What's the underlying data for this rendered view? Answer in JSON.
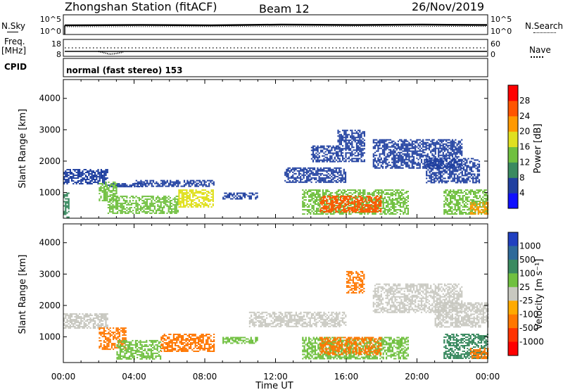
{
  "header": {
    "station": "Zhongshan Station (fitACF)",
    "beam": "Beam 12",
    "date": "26/Nov/2019"
  },
  "left_labels": {
    "nsky": "N.Sky",
    "freq_line1": "Freq.",
    "freq_line2": "[MHz]",
    "cpid": "CPID"
  },
  "right_labels": {
    "nsearch": "N.Search",
    "nave": "Nave"
  },
  "noise_panel": {
    "top_tick": "10^5",
    "bottom_tick": "10^0"
  },
  "freq_panel": {
    "left_ticks": [
      "18",
      "8"
    ],
    "right_ticks": [
      "60",
      "0"
    ]
  },
  "program": {
    "label": "normal (fast stereo) 153"
  },
  "time_axis": {
    "ticks": [
      "00:00",
      "04:00",
      "08:00",
      "12:00",
      "16:00",
      "20:00",
      "00:00"
    ],
    "label": "Time UT"
  },
  "range_axis": {
    "label": "Slant Range [km]",
    "ticks": [
      "1000",
      "2000",
      "3000",
      "4000"
    ]
  },
  "power_scale": {
    "label": "Power [dB]",
    "ticks": [
      "4",
      "8",
      "12",
      "16",
      "20",
      "24",
      "28"
    ],
    "colors": [
      "#1010ff",
      "#2040a0",
      "#3a8a60",
      "#70c040",
      "#e0e020",
      "#ff9900",
      "#ff5500",
      "#ff0000"
    ]
  },
  "velocity_scale": {
    "label": "Velocity [m s⁻¹]",
    "ticks": [
      "1000",
      "500",
      "100",
      "25",
      "-25",
      "-100",
      "-500",
      "-1000"
    ],
    "colors": [
      "#2040c0",
      "#2e6a9a",
      "#3a8a60",
      "#70c040",
      "#c8c8c0",
      "#ffaa00",
      "#ff7700",
      "#ff3300",
      "#ff0000"
    ]
  },
  "chart_data": [
    {
      "type": "heatmap",
      "title": "Power",
      "xlabel": "Time UT",
      "ylabel": "Slant Range [km]",
      "xlim": [
        "00:00",
        "24:00"
      ],
      "ylim": [
        180,
        4600
      ],
      "colorbar": {
        "label": "Power [dB]",
        "range": [
          0,
          32
        ]
      },
      "regions": [
        {
          "x": [
            0.0,
            2.5
          ],
          "y": [
            1300,
            1750
          ],
          "value": 6
        },
        {
          "x": [
            2.5,
            4.5
          ],
          "y": [
            1200,
            1300
          ],
          "value": 6
        },
        {
          "x": [
            0.0,
            0.3
          ],
          "y": [
            200,
            1000
          ],
          "value": 10
        },
        {
          "x": [
            2.0,
            3.0
          ],
          "y": [
            750,
            1350
          ],
          "value": 14
        },
        {
          "x": [
            2.5,
            6.5
          ],
          "y": [
            350,
            900
          ],
          "value": 14
        },
        {
          "x": [
            6.5,
            8.5
          ],
          "y": [
            550,
            1100
          ],
          "value": 18
        },
        {
          "x": [
            4.0,
            8.5
          ],
          "y": [
            1200,
            1400
          ],
          "value": 6
        },
        {
          "x": [
            9.0,
            11.0
          ],
          "y": [
            800,
            1000
          ],
          "value": 6
        },
        {
          "x": [
            12.5,
            16.0
          ],
          "y": [
            1350,
            1800
          ],
          "value": 6
        },
        {
          "x": [
            14.0,
            15.5
          ],
          "y": [
            2000,
            2500
          ],
          "value": 6
        },
        {
          "x": [
            13.5,
            19.5
          ],
          "y": [
            300,
            1100
          ],
          "value": 12
        },
        {
          "x": [
            14.5,
            18.0
          ],
          "y": [
            400,
            900
          ],
          "value": 26
        },
        {
          "x": [
            15.5,
            17.0
          ],
          "y": [
            2000,
            3000
          ],
          "value": 6
        },
        {
          "x": [
            17.5,
            22.5
          ],
          "y": [
            1800,
            2700
          ],
          "value": 6
        },
        {
          "x": [
            20.5,
            23.5
          ],
          "y": [
            1300,
            2100
          ],
          "value": 6
        },
        {
          "x": [
            21.5,
            24.0
          ],
          "y": [
            300,
            1100
          ],
          "value": 12
        },
        {
          "x": [
            23.0,
            24.0
          ],
          "y": [
            300,
            700
          ],
          "value": 20
        }
      ]
    },
    {
      "type": "heatmap",
      "title": "Velocity",
      "xlabel": "Time UT",
      "ylabel": "Slant Range [km]",
      "xlim": [
        "00:00",
        "24:00"
      ],
      "ylim": [
        180,
        4600
      ],
      "colorbar": {
        "label": "Velocity [m s⁻¹]",
        "range": [
          -1000,
          1000
        ]
      },
      "regions": [
        {
          "x": [
            0.0,
            2.5
          ],
          "y": [
            1300,
            1750
          ],
          "value": 0
        },
        {
          "x": [
            2.0,
            3.5
          ],
          "y": [
            600,
            1300
          ],
          "value": -300
        },
        {
          "x": [
            3.0,
            5.5
          ],
          "y": [
            300,
            900
          ],
          "value": 80
        },
        {
          "x": [
            5.5,
            8.5
          ],
          "y": [
            550,
            1100
          ],
          "value": -250
        },
        {
          "x": [
            9.0,
            11.0
          ],
          "y": [
            800,
            1000
          ],
          "value": 60
        },
        {
          "x": [
            10.5,
            16.0
          ],
          "y": [
            1350,
            1800
          ],
          "value": 0
        },
        {
          "x": [
            13.5,
            19.5
          ],
          "y": [
            300,
            1000
          ],
          "value": 60
        },
        {
          "x": [
            14.5,
            18.0
          ],
          "y": [
            450,
            1000
          ],
          "value": -400
        },
        {
          "x": [
            16.0,
            17.0
          ],
          "y": [
            2400,
            3100
          ],
          "value": -300
        },
        {
          "x": [
            17.5,
            22.5
          ],
          "y": [
            1800,
            2700
          ],
          "value": 0
        },
        {
          "x": [
            21.0,
            24.0
          ],
          "y": [
            1300,
            2100
          ],
          "value": 0
        },
        {
          "x": [
            21.5,
            24.0
          ],
          "y": [
            300,
            1100
          ],
          "value": 120
        },
        {
          "x": [
            23.0,
            24.0
          ],
          "y": [
            300,
            650
          ],
          "value": -300
        }
      ]
    }
  ]
}
